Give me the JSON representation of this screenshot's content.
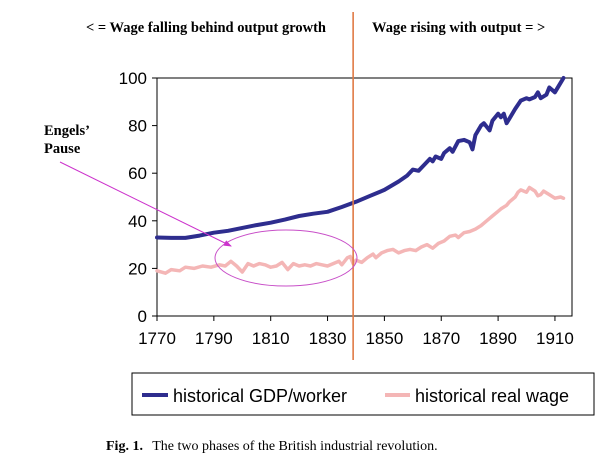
{
  "chart_data": {
    "type": "line",
    "phase_labels": {
      "left": "< = Wage falling behind output growth",
      "right": "Wage rising with output = >"
    },
    "divider_x": 1839,
    "annotation": {
      "line1": "Engels’",
      "line2": "Pause"
    },
    "xlim": [
      1770,
      1916
    ],
    "ylim": [
      0,
      100
    ],
    "x_ticks": [
      1770,
      1790,
      1810,
      1830,
      1850,
      1870,
      1890,
      1910
    ],
    "y_ticks": [
      0,
      20,
      40,
      60,
      80,
      100
    ],
    "legend_position": "bottom",
    "series": [
      {
        "name": "historical GDP/worker",
        "color": "#2e2d8e",
        "points": [
          [
            1770,
            33
          ],
          [
            1775,
            32.8
          ],
          [
            1780,
            32.8
          ],
          [
            1785,
            33.8
          ],
          [
            1790,
            35
          ],
          [
            1795,
            35.8
          ],
          [
            1800,
            37
          ],
          [
            1805,
            38.2
          ],
          [
            1810,
            39.2
          ],
          [
            1815,
            40.5
          ],
          [
            1820,
            42
          ],
          [
            1825,
            43
          ],
          [
            1830,
            43.8
          ],
          [
            1835,
            45.8
          ],
          [
            1840,
            48
          ],
          [
            1845,
            50.5
          ],
          [
            1850,
            53
          ],
          [
            1855,
            56.5
          ],
          [
            1858,
            59
          ],
          [
            1860,
            61.5
          ],
          [
            1862,
            61
          ],
          [
            1864,
            63.5
          ],
          [
            1866,
            66
          ],
          [
            1867,
            65
          ],
          [
            1868,
            67
          ],
          [
            1870,
            66
          ],
          [
            1871,
            68.5
          ],
          [
            1873,
            70.5
          ],
          [
            1874,
            69
          ],
          [
            1876,
            73.5
          ],
          [
            1878,
            74
          ],
          [
            1880,
            73
          ],
          [
            1881,
            70
          ],
          [
            1882,
            76
          ],
          [
            1884,
            80
          ],
          [
            1885,
            81
          ],
          [
            1887,
            78
          ],
          [
            1888,
            82
          ],
          [
            1890,
            85
          ],
          [
            1891,
            83.5
          ],
          [
            1892,
            85
          ],
          [
            1893,
            81
          ],
          [
            1894,
            83
          ],
          [
            1896,
            87
          ],
          [
            1898,
            90.5
          ],
          [
            1900,
            91.5
          ],
          [
            1901,
            91
          ],
          [
            1903,
            92
          ],
          [
            1904,
            94
          ],
          [
            1905,
            91.5
          ],
          [
            1907,
            93
          ],
          [
            1908,
            96
          ],
          [
            1910,
            94
          ],
          [
            1912,
            98
          ],
          [
            1913,
            100
          ]
        ]
      },
      {
        "name": "historical real wage",
        "color": "#f4b6b6",
        "points": [
          [
            1770,
            19
          ],
          [
            1773,
            18
          ],
          [
            1775,
            19.5
          ],
          [
            1778,
            19
          ],
          [
            1780,
            20.5
          ],
          [
            1783,
            20
          ],
          [
            1786,
            21
          ],
          [
            1789,
            20.5
          ],
          [
            1792,
            21.5
          ],
          [
            1794,
            21
          ],
          [
            1796,
            23
          ],
          [
            1798,
            21
          ],
          [
            1800,
            18.5
          ],
          [
            1802,
            22
          ],
          [
            1804,
            21
          ],
          [
            1806,
            22
          ],
          [
            1808,
            21.5
          ],
          [
            1810,
            20.5
          ],
          [
            1812,
            21
          ],
          [
            1814,
            22.5
          ],
          [
            1816,
            19.5
          ],
          [
            1818,
            22
          ],
          [
            1820,
            21
          ],
          [
            1822,
            21.5
          ],
          [
            1824,
            21
          ],
          [
            1826,
            22
          ],
          [
            1828,
            21.5
          ],
          [
            1830,
            21
          ],
          [
            1832,
            22
          ],
          [
            1834,
            23
          ],
          [
            1835,
            21.5
          ],
          [
            1837,
            24.5
          ],
          [
            1838,
            25
          ],
          [
            1839,
            22
          ],
          [
            1840,
            23.5
          ],
          [
            1842,
            22.5
          ],
          [
            1844,
            24.5
          ],
          [
            1846,
            26
          ],
          [
            1847,
            24.5
          ],
          [
            1849,
            26.5
          ],
          [
            1851,
            27.5
          ],
          [
            1853,
            28
          ],
          [
            1855,
            26.5
          ],
          [
            1857,
            27.5
          ],
          [
            1859,
            28
          ],
          [
            1861,
            27.5
          ],
          [
            1863,
            29
          ],
          [
            1865,
            30
          ],
          [
            1867,
            28.5
          ],
          [
            1869,
            30.5
          ],
          [
            1871,
            31.5
          ],
          [
            1873,
            33.5
          ],
          [
            1875,
            34
          ],
          [
            1876,
            33
          ],
          [
            1878,
            35
          ],
          [
            1880,
            35.5
          ],
          [
            1882,
            36.5
          ],
          [
            1884,
            38
          ],
          [
            1886,
            40
          ],
          [
            1888,
            42
          ],
          [
            1890,
            44
          ],
          [
            1891,
            45
          ],
          [
            1893,
            46.5
          ],
          [
            1894,
            48
          ],
          [
            1896,
            50
          ],
          [
            1897,
            52
          ],
          [
            1898,
            53
          ],
          [
            1900,
            52
          ],
          [
            1901,
            54
          ],
          [
            1903,
            52.5
          ],
          [
            1904,
            50.5
          ],
          [
            1905,
            51
          ],
          [
            1906,
            52.5
          ],
          [
            1908,
            51
          ],
          [
            1910,
            49.5
          ],
          [
            1912,
            50
          ],
          [
            1913,
            49.5
          ]
        ]
      }
    ]
  },
  "caption": {
    "label": "Fig. 1.",
    "text": "The two phases of the British industrial revolution."
  }
}
